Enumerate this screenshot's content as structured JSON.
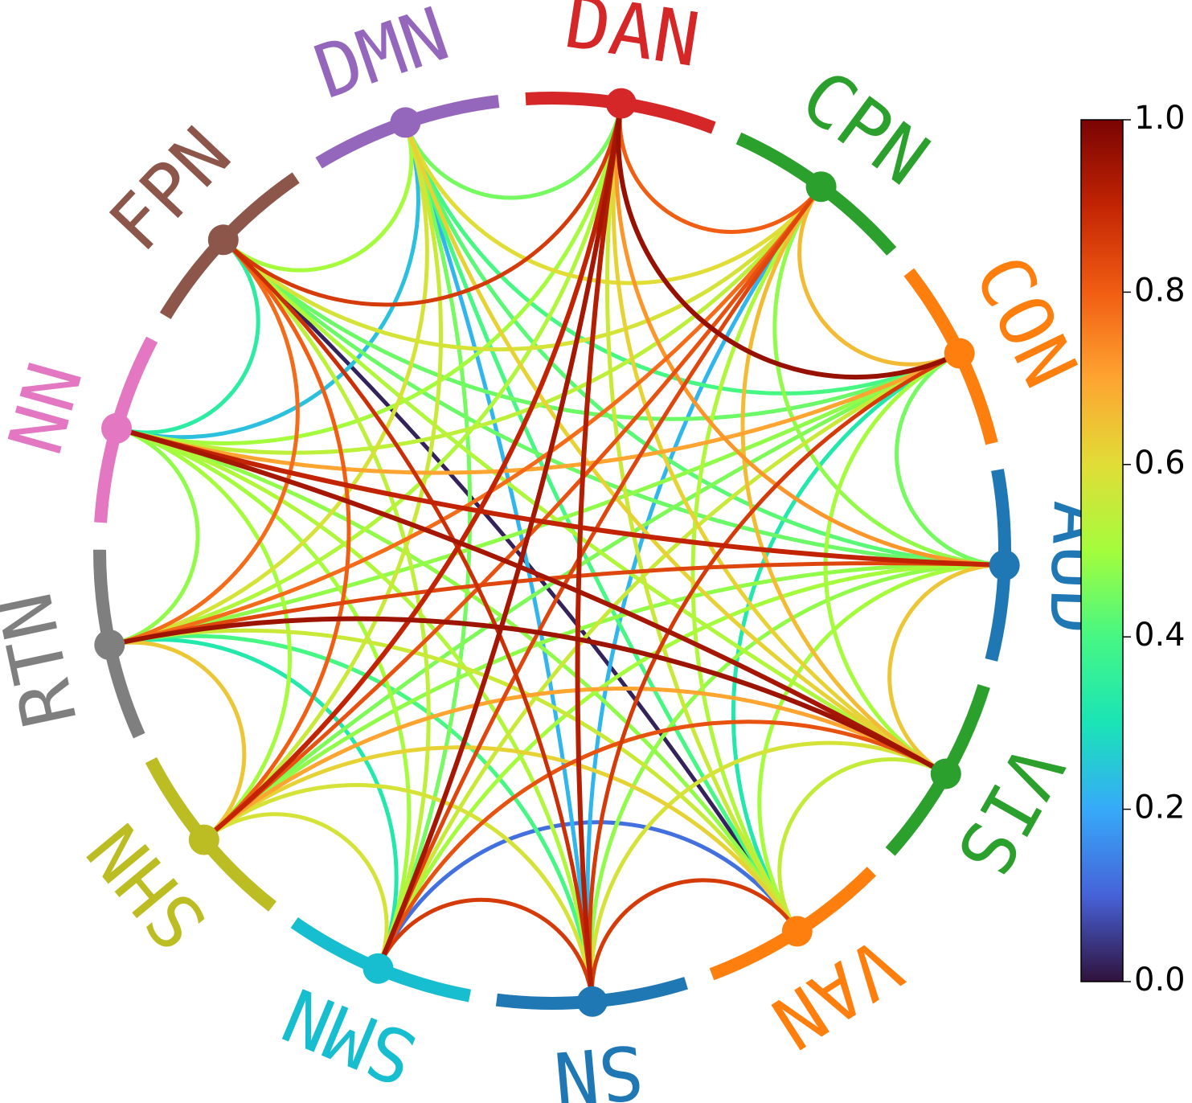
{
  "diagram": {
    "networks": [
      {
        "label": "DAN",
        "color": "#d62728"
      },
      {
        "label": "CPN",
        "color": "#2ca02c"
      },
      {
        "label": "CON",
        "color": "#ff7f0e"
      },
      {
        "label": "AUD",
        "color": "#1f77b4"
      },
      {
        "label": "VIS",
        "color": "#2ca02c"
      },
      {
        "label": "VAN",
        "color": "#ff7f0e"
      },
      {
        "label": "SN",
        "color": "#1f77b4"
      },
      {
        "label": "SMN",
        "color": "#17becf"
      },
      {
        "label": "SHN",
        "color": "#bcbd22"
      },
      {
        "label": "RTN",
        "color": "#7f7f7f"
      },
      {
        "label": "NN",
        "color": "#e377c2"
      },
      {
        "label": "FPN",
        "color": "#8c564b"
      },
      {
        "label": "DMN",
        "color": "#9467bd"
      }
    ],
    "connections": [
      {
        "a": "DAN",
        "b": "CPN",
        "w": 0.8
      },
      {
        "a": "DAN",
        "b": "CON",
        "w": 0.96
      },
      {
        "a": "DAN",
        "b": "AUD",
        "w": 0.72
      },
      {
        "a": "DAN",
        "b": "VIS",
        "w": 0.62
      },
      {
        "a": "DAN",
        "b": "VAN",
        "w": 0.56
      },
      {
        "a": "DAN",
        "b": "SN",
        "w": 0.92
      },
      {
        "a": "DAN",
        "b": "SMN",
        "w": 0.94
      },
      {
        "a": "DAN",
        "b": "SHN",
        "w": 0.9
      },
      {
        "a": "DAN",
        "b": "RTN",
        "w": 0.52
      },
      {
        "a": "DAN",
        "b": "NN",
        "w": 0.5
      },
      {
        "a": "DAN",
        "b": "FPN",
        "w": 0.86
      },
      {
        "a": "DAN",
        "b": "DMN",
        "w": 0.45
      },
      {
        "a": "CPN",
        "b": "CON",
        "w": 0.66
      },
      {
        "a": "CPN",
        "b": "AUD",
        "w": 0.48
      },
      {
        "a": "CPN",
        "b": "VIS",
        "w": 0.66
      },
      {
        "a": "CPN",
        "b": "VAN",
        "w": 0.52
      },
      {
        "a": "CPN",
        "b": "SN",
        "w": 0.22
      },
      {
        "a": "CPN",
        "b": "SMN",
        "w": 0.84
      },
      {
        "a": "CPN",
        "b": "SHN",
        "w": 0.82
      },
      {
        "a": "CPN",
        "b": "RTN",
        "w": 0.78
      },
      {
        "a": "CPN",
        "b": "NN",
        "w": 0.54
      },
      {
        "a": "CPN",
        "b": "FPN",
        "w": 0.58
      },
      {
        "a": "CPN",
        "b": "DMN",
        "w": 0.6
      },
      {
        "a": "CON",
        "b": "AUD",
        "w": 0.45
      },
      {
        "a": "CON",
        "b": "VIS",
        "w": 0.5
      },
      {
        "a": "CON",
        "b": "VAN",
        "w": 0.32
      },
      {
        "a": "CON",
        "b": "SN",
        "w": 0.86
      },
      {
        "a": "CON",
        "b": "SMN",
        "w": 0.56
      },
      {
        "a": "CON",
        "b": "SHN",
        "w": 0.46
      },
      {
        "a": "CON",
        "b": "RTN",
        "w": 0.48
      },
      {
        "a": "CON",
        "b": "NN",
        "w": 0.7
      },
      {
        "a": "CON",
        "b": "FPN",
        "w": 0.44
      },
      {
        "a": "CON",
        "b": "DMN",
        "w": 0.4
      },
      {
        "a": "AUD",
        "b": "VIS",
        "w": 0.64
      },
      {
        "a": "AUD",
        "b": "VAN",
        "w": 0.5
      },
      {
        "a": "AUD",
        "b": "SN",
        "w": 0.48
      },
      {
        "a": "AUD",
        "b": "SMN",
        "w": 0.5
      },
      {
        "a": "AUD",
        "b": "SHN",
        "w": 0.48
      },
      {
        "a": "AUD",
        "b": "RTN",
        "w": 0.84
      },
      {
        "a": "AUD",
        "b": "NN",
        "w": 0.9
      },
      {
        "a": "AUD",
        "b": "FPN",
        "w": 0.44
      },
      {
        "a": "AUD",
        "b": "DMN",
        "w": 0.42
      },
      {
        "a": "VIS",
        "b": "VAN",
        "w": 0.55
      },
      {
        "a": "VIS",
        "b": "SN",
        "w": 0.58
      },
      {
        "a": "VIS",
        "b": "SMN",
        "w": 0.82
      },
      {
        "a": "VIS",
        "b": "SHN",
        "w": 0.7
      },
      {
        "a": "VIS",
        "b": "RTN",
        "w": 0.95
      },
      {
        "a": "VIS",
        "b": "NN",
        "w": 0.94
      },
      {
        "a": "VIS",
        "b": "FPN",
        "w": 0.52
      },
      {
        "a": "VIS",
        "b": "DMN",
        "w": 0.62
      },
      {
        "a": "VAN",
        "b": "SN",
        "w": 0.86
      },
      {
        "a": "VAN",
        "b": "SMN",
        "w": 0.12
      },
      {
        "a": "VAN",
        "b": "SHN",
        "w": 0.62
      },
      {
        "a": "VAN",
        "b": "RTN",
        "w": 0.56
      },
      {
        "a": "VAN",
        "b": "NN",
        "w": 0.48
      },
      {
        "a": "VAN",
        "b": "FPN",
        "w": 0.02
      },
      {
        "a": "VAN",
        "b": "DMN",
        "w": 0.4
      },
      {
        "a": "SN",
        "b": "SMN",
        "w": 0.86
      },
      {
        "a": "SN",
        "b": "SHN",
        "w": 0.58
      },
      {
        "a": "SN",
        "b": "RTN",
        "w": 0.4
      },
      {
        "a": "SN",
        "b": "NN",
        "w": 0.52
      },
      {
        "a": "SN",
        "b": "FPN",
        "w": 0.88
      },
      {
        "a": "SN",
        "b": "DMN",
        "w": 0.22
      },
      {
        "a": "SMN",
        "b": "SHN",
        "w": 0.58
      },
      {
        "a": "SMN",
        "b": "RTN",
        "w": 0.32
      },
      {
        "a": "SMN",
        "b": "NN",
        "w": 0.5
      },
      {
        "a": "SMN",
        "b": "FPN",
        "w": 0.54
      },
      {
        "a": "SMN",
        "b": "DMN",
        "w": 0.45
      },
      {
        "a": "SHN",
        "b": "RTN",
        "w": 0.64
      },
      {
        "a": "SHN",
        "b": "NN",
        "w": 0.5
      },
      {
        "a": "SHN",
        "b": "FPN",
        "w": 0.8
      },
      {
        "a": "SHN",
        "b": "DMN",
        "w": 0.56
      },
      {
        "a": "RTN",
        "b": "NN",
        "w": 0.48
      },
      {
        "a": "RTN",
        "b": "FPN",
        "w": 0.78
      },
      {
        "a": "RTN",
        "b": "DMN",
        "w": 0.58
      },
      {
        "a": "NN",
        "b": "FPN",
        "w": 0.34
      },
      {
        "a": "NN",
        "b": "DMN",
        "w": 0.24
      },
      {
        "a": "FPN",
        "b": "DMN",
        "w": 0.5
      }
    ]
  },
  "colorbar": {
    "colormap": "turbo",
    "min": 0.0,
    "max": 1.0,
    "ticks": [
      "0.0",
      "0.2",
      "0.4",
      "0.6",
      "0.8",
      "1.0"
    ]
  }
}
